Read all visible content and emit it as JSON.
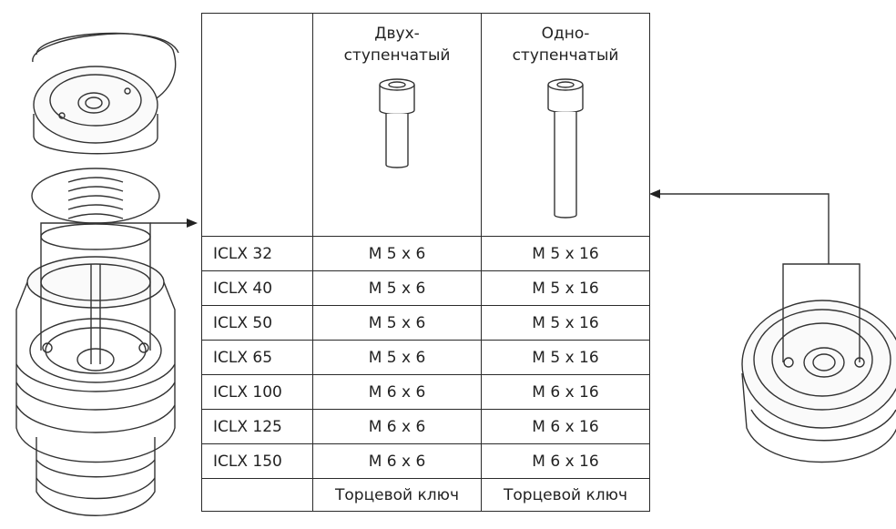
{
  "table": {
    "columns": [
      {
        "line1": "Двух-",
        "line2": "ступенчатый"
      },
      {
        "line1": "Одно-",
        "line2": "ступенчатый"
      }
    ],
    "rows": [
      {
        "model": "ICLX 32",
        "two_stage": "M 5 x 6",
        "one_stage": "M 5 x 16"
      },
      {
        "model": "ICLX 40",
        "two_stage": "M 5 x 6",
        "one_stage": "M 5 x 16"
      },
      {
        "model": "ICLX 50",
        "two_stage": "M 5 x 6",
        "one_stage": "M 5 x 16"
      },
      {
        "model": "ICLX 65",
        "two_stage": "M 5 x 6",
        "one_stage": "M 5 x 16"
      },
      {
        "model": "ICLX 100",
        "two_stage": "M 6 x 6",
        "one_stage": "M 6 x 16"
      },
      {
        "model": "ICLX 125",
        "two_stage": "M 6 x 6",
        "one_stage": "M 6 x 16"
      },
      {
        "model": "ICLX 150",
        "two_stage": "M 6 x 6",
        "one_stage": "M 6 x 16"
      }
    ],
    "tool": {
      "model": "",
      "two_stage": "Торцевой ключ",
      "one_stage": "Торцевой ключ"
    }
  },
  "icons": {
    "left": "exploded-valve-assembly-icon",
    "right": "valve-top-view-icon",
    "short_screw": "short-socket-screw-icon",
    "long_screw": "long-socket-screw-icon"
  }
}
